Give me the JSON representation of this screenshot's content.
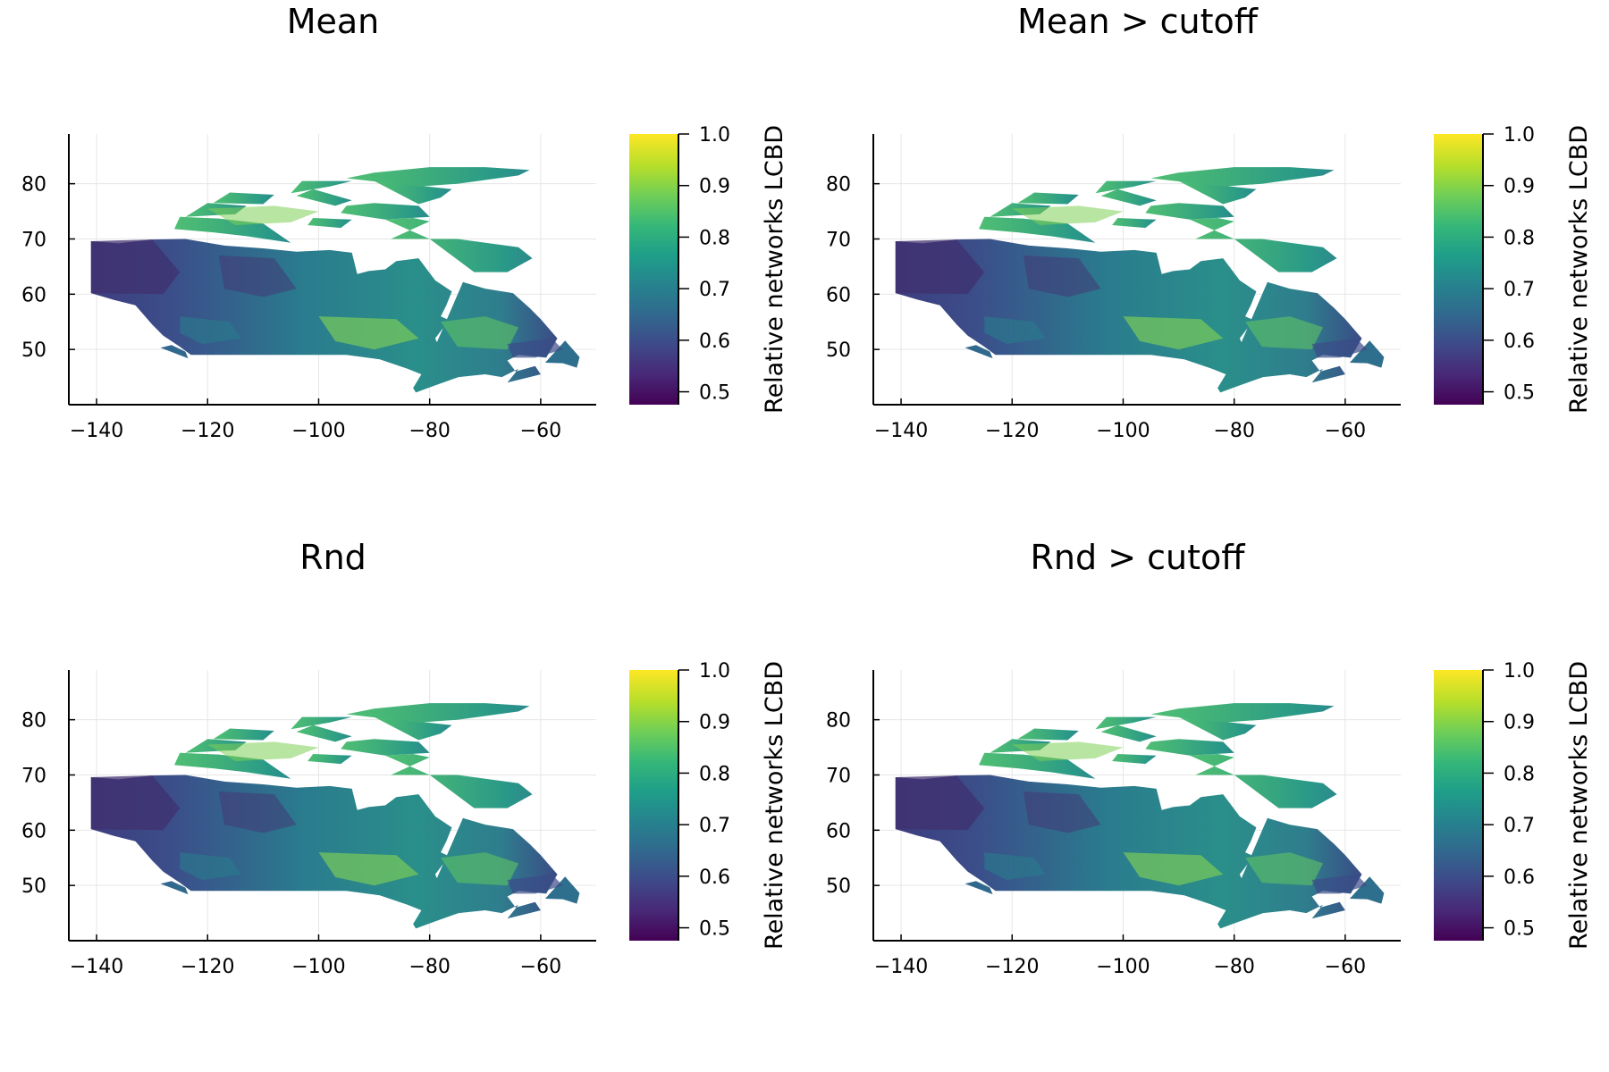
{
  "figure": {
    "colorbar_label": "Relative networks LCBD",
    "colormap": "viridis",
    "colormap_stops": [
      "#440154",
      "#482878",
      "#3e4989",
      "#31688e",
      "#26828e",
      "#1f9e89",
      "#35b779",
      "#6ece58",
      "#b5de2b",
      "#fde725"
    ]
  },
  "panels": [
    {
      "title": "Mean"
    },
    {
      "title": "Mean > cutoff"
    },
    {
      "title": "Rnd"
    },
    {
      "title": "Rnd > cutoff"
    }
  ],
  "chart_data": {
    "type": "heatmap",
    "x_ticks": [
      -140,
      -120,
      -100,
      -80,
      -60
    ],
    "x_tick_labels": [
      "−140",
      "−120",
      "−100",
      "−80",
      "−60"
    ],
    "y_ticks": [
      50,
      60,
      70,
      80
    ],
    "y_tick_labels": [
      "50",
      "60",
      "70",
      "80"
    ],
    "xlim": [
      -145,
      -50
    ],
    "ylim": [
      40,
      89
    ],
    "colorbar_ticks": [
      0.5,
      0.6,
      0.7,
      0.8,
      0.9,
      1.0
    ],
    "colorbar_tick_labels": [
      "0.5",
      "0.6",
      "0.7",
      "0.8",
      "0.9",
      "1.0"
    ],
    "colorbar_range": [
      0.475,
      1.0
    ],
    "colorbar_label": "Relative networks LCBD",
    "grid": true
  }
}
